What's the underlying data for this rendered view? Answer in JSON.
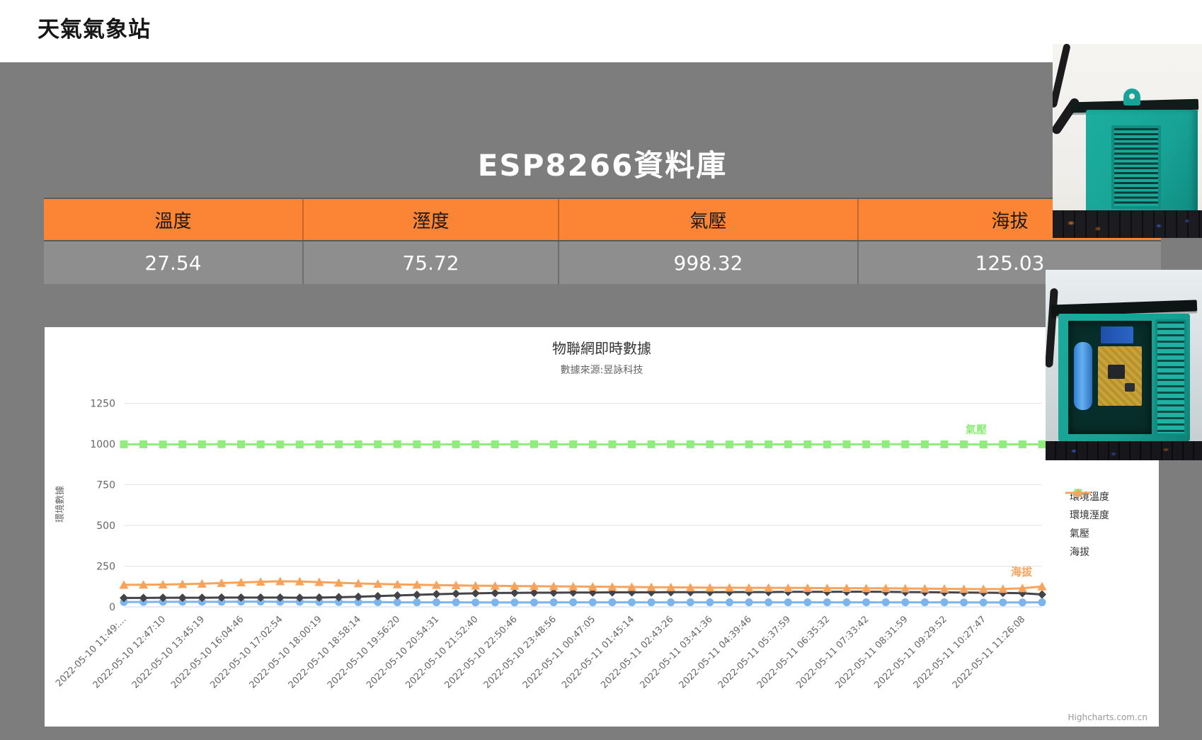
{
  "page": {
    "title": "天氣氣象站",
    "background": "#7d7d7d"
  },
  "database": {
    "title": "ESP8266資料庫",
    "table": {
      "header_color": "#fb8435",
      "headers": [
        "溫度",
        "溼度",
        "氣壓",
        "海拔"
      ],
      "values": [
        "27.54",
        "75.72",
        "998.32",
        "125.03"
      ]
    }
  },
  "photos": {
    "photo1_name": "weather-station-closed-box-photo",
    "photo2_name": "weather-station-open-electronics-photo",
    "device_color": "#17a396"
  },
  "credit": "Highcharts.com.cn",
  "chart_data": {
    "type": "line",
    "title": "物聯網即時數據",
    "subtitle": "數據來源:昱詠科技",
    "ylabel": "環境數據",
    "ylim": [
      0,
      1350
    ],
    "yticks": [
      0,
      250,
      500,
      750,
      1000,
      1250
    ],
    "grid": true,
    "legend_position": "right",
    "label_every": 2,
    "x_labels": [
      "2022-05-10 11:49:…",
      "2022-05-10 12:47:10",
      "2022-05-10 13:45:19",
      "2022-05-10 16:04:46",
      "2022-05-10 17:02:54",
      "2022-05-10 18:00:19",
      "2022-05-10 18:58:14",
      "2022-05-10 19:56:20",
      "2022-05-10 20:54:31",
      "2022-05-10 21:52:40",
      "2022-05-10 22:50:46",
      "2022-05-10 23:48:56",
      "2022-05-11 00:47:05",
      "2022-05-11 01:45:14",
      "2022-05-11 02:43:26",
      "2022-05-11 03:41:36",
      "2022-05-11 04:39:46",
      "2022-05-11 05:37:59",
      "2022-05-11 06:35:32",
      "2022-05-11 07:33:42",
      "2022-05-11 08:31:59",
      "2022-05-11 09:29:52",
      "2022-05-11 10:27:47",
      "2022-05-11 11:26:08"
    ],
    "series": [
      {
        "name": "環境溫度",
        "color": "#7cb5ec",
        "marker": "circle",
        "values": [
          30,
          30,
          31,
          31,
          31,
          31,
          32,
          32,
          31,
          31,
          30,
          30,
          29,
          29,
          28,
          28,
          28,
          28,
          27,
          27,
          27,
          27,
          28,
          28,
          28,
          28,
          28,
          28,
          28,
          28,
          28,
          28,
          28,
          28,
          28,
          28,
          28,
          28,
          28,
          28,
          28,
          28,
          28,
          27,
          27,
          27,
          27,
          28
        ]
      },
      {
        "name": "環境溼度",
        "color": "#434348",
        "marker": "diamond",
        "values": [
          55,
          55,
          56,
          56,
          56,
          57,
          57,
          57,
          57,
          56,
          57,
          59,
          62,
          66,
          70,
          74,
          78,
          81,
          83,
          85,
          86,
          87,
          87,
          88,
          88,
          89,
          89,
          89,
          90,
          90,
          90,
          91,
          91,
          91,
          92,
          92,
          92,
          93,
          93,
          92,
          91,
          90,
          89,
          88,
          87,
          86,
          84,
          76
        ]
      },
      {
        "name": "氣壓",
        "color": "#90ed7d",
        "marker": "square",
        "end_label": "氣壓",
        "values": [
          998,
          998,
          997,
          998,
          998,
          999,
          998,
          998,
          997,
          997,
          998,
          998,
          998,
          998,
          999,
          998,
          997,
          998,
          998,
          998,
          998,
          999,
          998,
          998,
          997,
          998,
          998,
          998,
          999,
          998,
          998,
          997,
          998,
          998,
          998,
          998,
          997,
          998,
          998,
          999,
          998,
          998,
          998,
          998,
          997,
          998,
          998,
          998
        ]
      },
      {
        "name": "海拔",
        "color": "#f7a35c",
        "marker": "triangle",
        "end_label": "海拔",
        "values": [
          135,
          136,
          137,
          139,
          142,
          146,
          150,
          154,
          157,
          156,
          152,
          148,
          144,
          141,
          138,
          136,
          134,
          132,
          130,
          129,
          128,
          127,
          126,
          125,
          124,
          123,
          122,
          121,
          120,
          119,
          118,
          118,
          117,
          117,
          116,
          116,
          115,
          115,
          114,
          114,
          113,
          112,
          111,
          110,
          109,
          110,
          114,
          125
        ]
      }
    ],
    "legend": [
      "環境溫度",
      "環境溼度",
      "氣壓",
      "海拔"
    ]
  }
}
